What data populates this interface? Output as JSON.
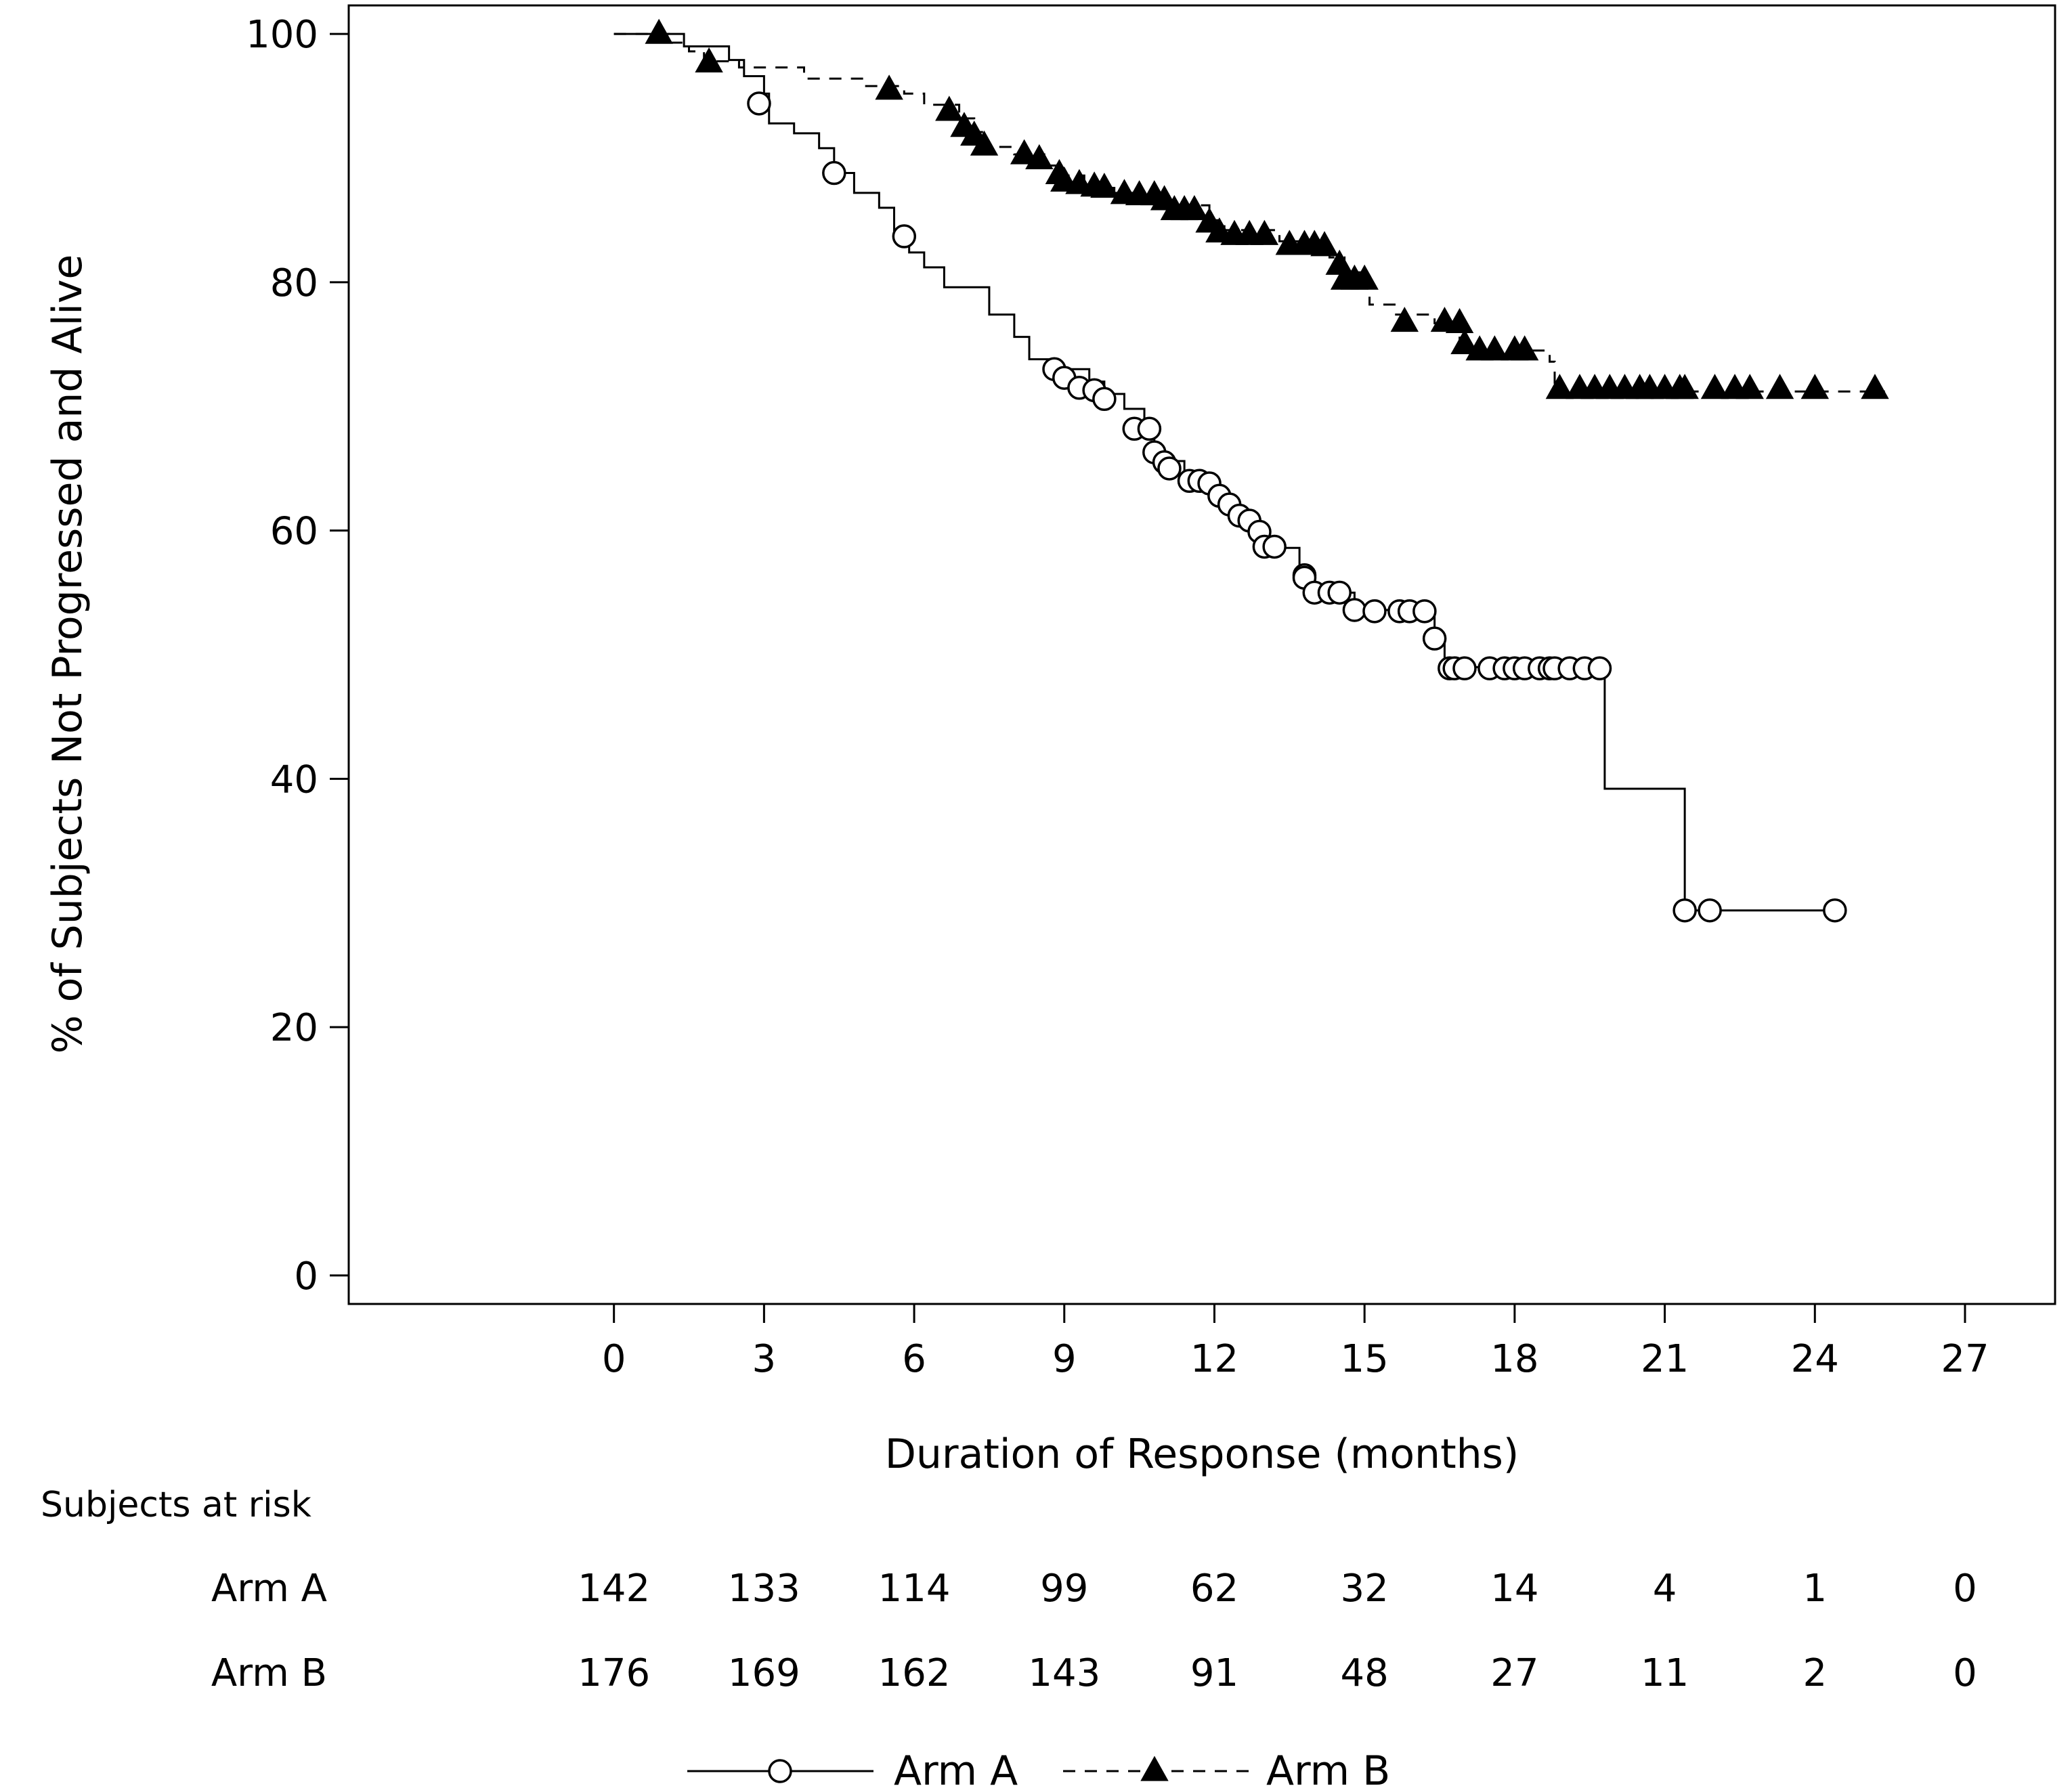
{
  "chart_data": {
    "type": "line",
    "title": "",
    "xlabel": "Duration of Response (months)",
    "ylabel": "% of Subjects Not Progressed and Alive",
    "xlim": [
      -5.3,
      28.8
    ],
    "ylim": [
      -2.3,
      102.3
    ],
    "x_ticks": [
      0,
      3,
      6,
      9,
      12,
      15,
      18,
      21,
      24,
      27
    ],
    "y_ticks": [
      0,
      20,
      40,
      60,
      80,
      100
    ],
    "grid": false,
    "legend_position": "bottom",
    "series": [
      {
        "name": "Arm A",
        "line_style": "solid",
        "marker": "open-circle",
        "steps": [
          [
            0,
            100
          ],
          [
            1.4,
            99
          ],
          [
            2.3,
            97.9
          ],
          [
            2.6,
            96.6
          ],
          [
            3.0,
            95.2
          ],
          [
            3.1,
            92.8
          ],
          [
            3.6,
            92
          ],
          [
            4.1,
            90.8
          ],
          [
            4.4,
            88.8
          ],
          [
            4.8,
            87.2
          ],
          [
            5.3,
            86
          ],
          [
            5.6,
            84
          ],
          [
            5.9,
            82.4
          ],
          [
            6.2,
            81.2
          ],
          [
            6.6,
            79.6
          ],
          [
            7.5,
            77.4
          ],
          [
            8.0,
            75.6
          ],
          [
            8.3,
            73.8
          ],
          [
            8.7,
            73
          ],
          [
            9.5,
            72
          ],
          [
            9.8,
            71
          ],
          [
            10.2,
            69.8
          ],
          [
            10.6,
            68
          ],
          [
            10.8,
            66.6
          ],
          [
            11.0,
            65.6
          ],
          [
            11.4,
            64.2
          ],
          [
            11.8,
            63.4
          ],
          [
            12.1,
            62.4
          ],
          [
            12.4,
            61.2
          ],
          [
            12.8,
            60
          ],
          [
            13.1,
            58.6
          ],
          [
            13.7,
            56.8
          ],
          [
            13.9,
            55.6
          ],
          [
            14.2,
            55
          ],
          [
            14.8,
            53.6
          ],
          [
            15.6,
            53.6
          ],
          [
            16.4,
            51.2
          ],
          [
            16.6,
            49
          ],
          [
            19.8,
            39.2
          ],
          [
            21.4,
            29.4
          ]
        ],
        "end_x": 24.4,
        "censored": [
          [
            2.9,
            94.4
          ],
          [
            4.4,
            88.8
          ],
          [
            5.8,
            83.7
          ],
          [
            8.8,
            73
          ],
          [
            9.0,
            72.3
          ],
          [
            9.3,
            71.5
          ],
          [
            9.6,
            71.3
          ],
          [
            9.8,
            70.6
          ],
          [
            10.4,
            68.2
          ],
          [
            10.7,
            68.2
          ],
          [
            10.8,
            66.3
          ],
          [
            11.0,
            65.5
          ],
          [
            11.1,
            65
          ],
          [
            11.5,
            64
          ],
          [
            11.7,
            64
          ],
          [
            11.9,
            63.8
          ],
          [
            12.1,
            62.8
          ],
          [
            12.3,
            62.1
          ],
          [
            12.5,
            61.2
          ],
          [
            12.7,
            60.8
          ],
          [
            12.9,
            59.9
          ],
          [
            13.0,
            58.7
          ],
          [
            13.2,
            58.7
          ],
          [
            13.8,
            56.4
          ],
          [
            13.8,
            56.2
          ],
          [
            14.0,
            55
          ],
          [
            14.3,
            55
          ],
          [
            14.5,
            55
          ],
          [
            14.8,
            53.6
          ],
          [
            15.2,
            53.5
          ],
          [
            15.7,
            53.5
          ],
          [
            15.9,
            53.5
          ],
          [
            16.2,
            53.5
          ],
          [
            16.4,
            51.3
          ],
          [
            16.7,
            48.9
          ],
          [
            16.8,
            48.9
          ],
          [
            17.0,
            48.9
          ],
          [
            17.5,
            48.9
          ],
          [
            17.8,
            48.9
          ],
          [
            18.0,
            48.9
          ],
          [
            18.2,
            48.9
          ],
          [
            18.5,
            48.9
          ],
          [
            18.7,
            48.9
          ],
          [
            18.8,
            48.9
          ],
          [
            19.1,
            48.9
          ],
          [
            19.4,
            48.9
          ],
          [
            19.7,
            48.9
          ],
          [
            21.4,
            29.4
          ],
          [
            21.9,
            29.4
          ],
          [
            24.4,
            29.4
          ]
        ]
      },
      {
        "name": "Arm B",
        "line_style": "dashed",
        "marker": "filled-triangle",
        "steps": [
          [
            0,
            100
          ],
          [
            1.1,
            99.3
          ],
          [
            1.5,
            98.6
          ],
          [
            1.8,
            97.8
          ],
          [
            2.5,
            97.3
          ],
          [
            3.8,
            96.4
          ],
          [
            5.0,
            95.8
          ],
          [
            5.8,
            95.2
          ],
          [
            6.2,
            94.3
          ],
          [
            6.9,
            93.2
          ],
          [
            7.2,
            92.1
          ],
          [
            7.4,
            90.9
          ],
          [
            8.0,
            90.3
          ],
          [
            8.6,
            89.4
          ],
          [
            9.0,
            88.6
          ],
          [
            9.4,
            87.9
          ],
          [
            9.7,
            87.6
          ],
          [
            10.0,
            87.2
          ],
          [
            11.0,
            86.2
          ],
          [
            11.9,
            85
          ],
          [
            12.2,
            84.2
          ],
          [
            13.3,
            83.3
          ],
          [
            14.3,
            82
          ],
          [
            14.6,
            80.8
          ],
          [
            15.1,
            78.2
          ],
          [
            15.6,
            77.4
          ],
          [
            16.4,
            76.7
          ],
          [
            16.9,
            74.5
          ],
          [
            18.7,
            73.6
          ],
          [
            18.8,
            71.2
          ]
        ],
        "end_x": 25.4,
        "censored": [
          [
            0.9,
            100
          ],
          [
            1.9,
            97.7
          ],
          [
            5.5,
            95.5
          ],
          [
            6.7,
            93.8
          ],
          [
            7.0,
            92.5
          ],
          [
            7.2,
            91.8
          ],
          [
            7.4,
            91
          ],
          [
            8.2,
            90.3
          ],
          [
            8.5,
            89.9
          ],
          [
            8.9,
            88.7
          ],
          [
            9.0,
            88.1
          ],
          [
            9.3,
            87.9
          ],
          [
            9.6,
            87.7
          ],
          [
            9.8,
            87.6
          ],
          [
            10.2,
            87.1
          ],
          [
            10.5,
            87
          ],
          [
            10.8,
            87
          ],
          [
            11.0,
            86.6
          ],
          [
            11.2,
            85.8
          ],
          [
            11.4,
            85.8
          ],
          [
            11.6,
            85.8
          ],
          [
            11.9,
            84.8
          ],
          [
            12.1,
            84
          ],
          [
            12.4,
            83.8
          ],
          [
            12.7,
            83.8
          ],
          [
            13.0,
            83.8
          ],
          [
            13.5,
            83
          ],
          [
            13.8,
            83
          ],
          [
            14.0,
            83
          ],
          [
            14.2,
            82.9
          ],
          [
            14.5,
            81.4
          ],
          [
            14.6,
            80.2
          ],
          [
            14.8,
            80.2
          ],
          [
            15.0,
            80.2
          ],
          [
            15.8,
            76.8
          ],
          [
            16.6,
            76.8
          ],
          [
            16.9,
            76.7
          ],
          [
            17.0,
            75
          ],
          [
            17.3,
            74.5
          ],
          [
            17.6,
            74.5
          ],
          [
            18.0,
            74.5
          ],
          [
            18.2,
            74.5
          ],
          [
            18.9,
            71.4
          ],
          [
            19.3,
            71.4
          ],
          [
            19.6,
            71.4
          ],
          [
            19.9,
            71.4
          ],
          [
            20.2,
            71.4
          ],
          [
            20.5,
            71.4
          ],
          [
            20.7,
            71.4
          ],
          [
            21.0,
            71.4
          ],
          [
            21.3,
            71.4
          ],
          [
            21.4,
            71.4
          ],
          [
            22.0,
            71.4
          ],
          [
            22.4,
            71.4
          ],
          [
            22.7,
            71.4
          ],
          [
            23.3,
            71.4
          ],
          [
            24.0,
            71.4
          ],
          [
            25.2,
            71.4
          ]
        ]
      }
    ],
    "at_risk": {
      "title": "Subjects at risk",
      "times": [
        0,
        3,
        6,
        9,
        12,
        15,
        18,
        21,
        24,
        27
      ],
      "rows": [
        {
          "label": "Arm A",
          "values": [
            "142",
            "133",
            "114",
            "99",
            "62",
            "32",
            "14",
            "4",
            "1",
            "0"
          ]
        },
        {
          "label": "Arm B",
          "values": [
            "176",
            "169",
            "162",
            "143",
            "91",
            "48",
            "27",
            "11",
            "2",
            "0"
          ]
        }
      ]
    }
  }
}
